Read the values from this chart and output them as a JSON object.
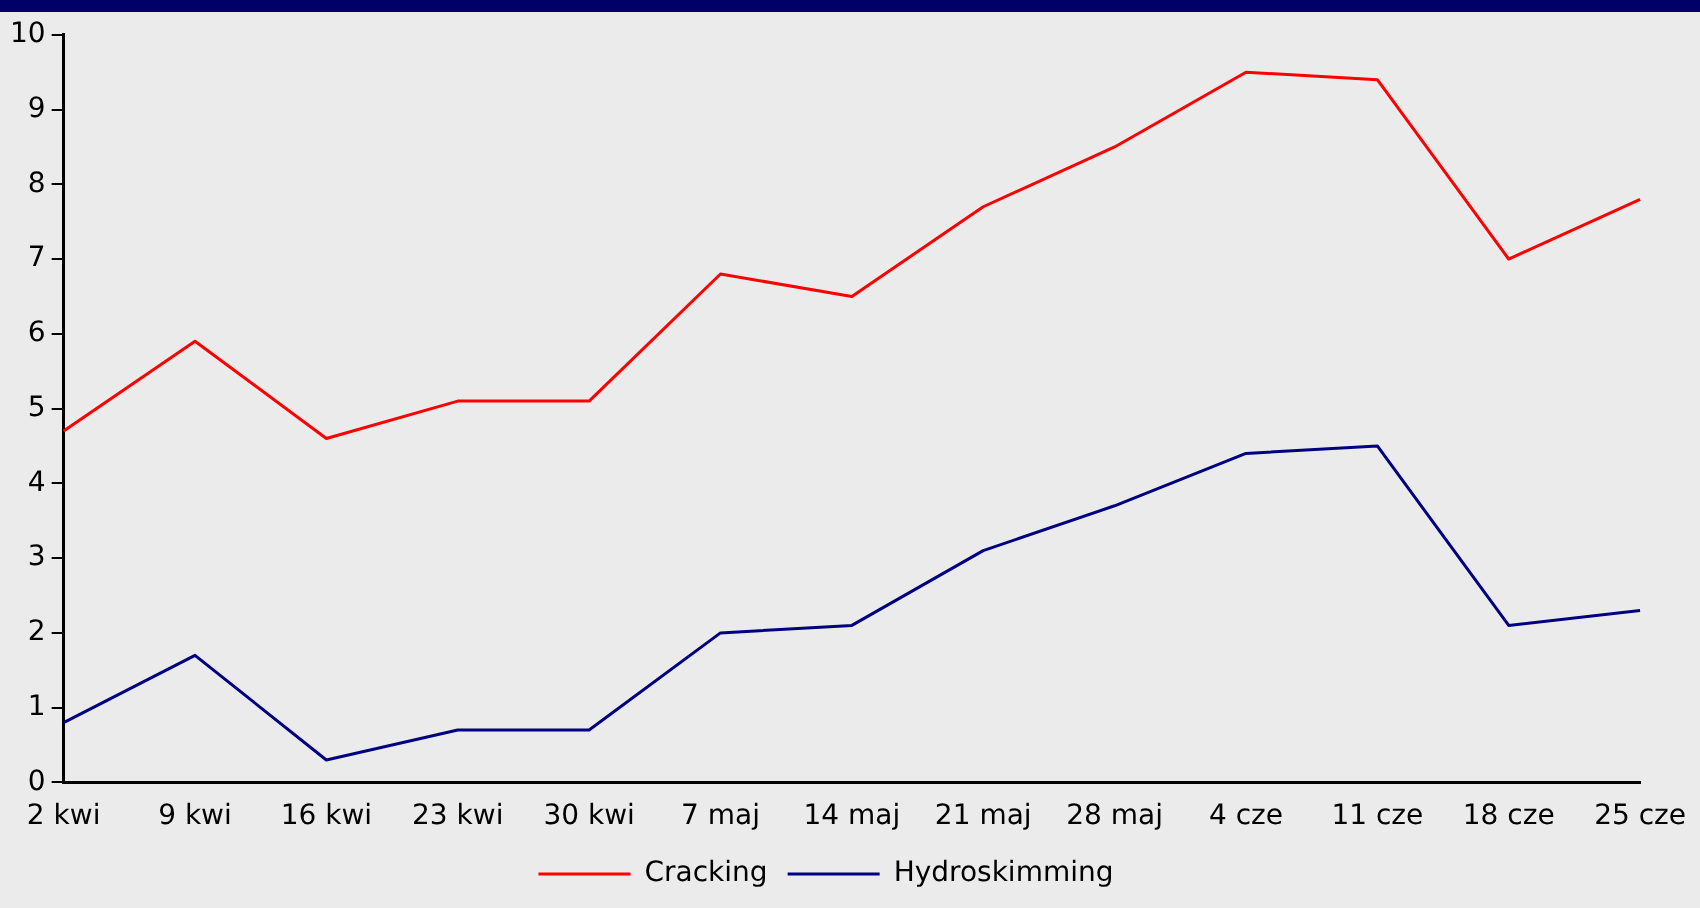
{
  "chart_data": {
    "type": "line",
    "categories": [
      "2 kwi",
      "9 kwi",
      "16 kwi",
      "23 kwi",
      "30 kwi",
      "7 maj",
      "14 maj",
      "21 maj",
      "28 maj",
      "4 cze",
      "11 cze",
      "18 cze",
      "25 cze"
    ],
    "series": [
      {
        "name": "Cracking",
        "color": "#ff0000",
        "values": [
          4.7,
          5.9,
          4.6,
          5.1,
          5.1,
          6.8,
          6.5,
          7.7,
          8.5,
          9.5,
          9.4,
          7.0,
          7.8
        ]
      },
      {
        "name": "Hydroskimming",
        "color": "#000080",
        "values": [
          0.8,
          1.7,
          0.3,
          0.7,
          0.7,
          2.0,
          2.1,
          3.1,
          3.7,
          4.4,
          4.5,
          2.1,
          2.3
        ]
      }
    ],
    "ylim": [
      0,
      10
    ],
    "yticks": [
      0,
      1,
      2,
      3,
      4,
      5,
      6,
      7,
      8,
      9,
      10
    ],
    "grid": false,
    "legend": "bottom",
    "marker": "none",
    "line_style": "solid"
  }
}
